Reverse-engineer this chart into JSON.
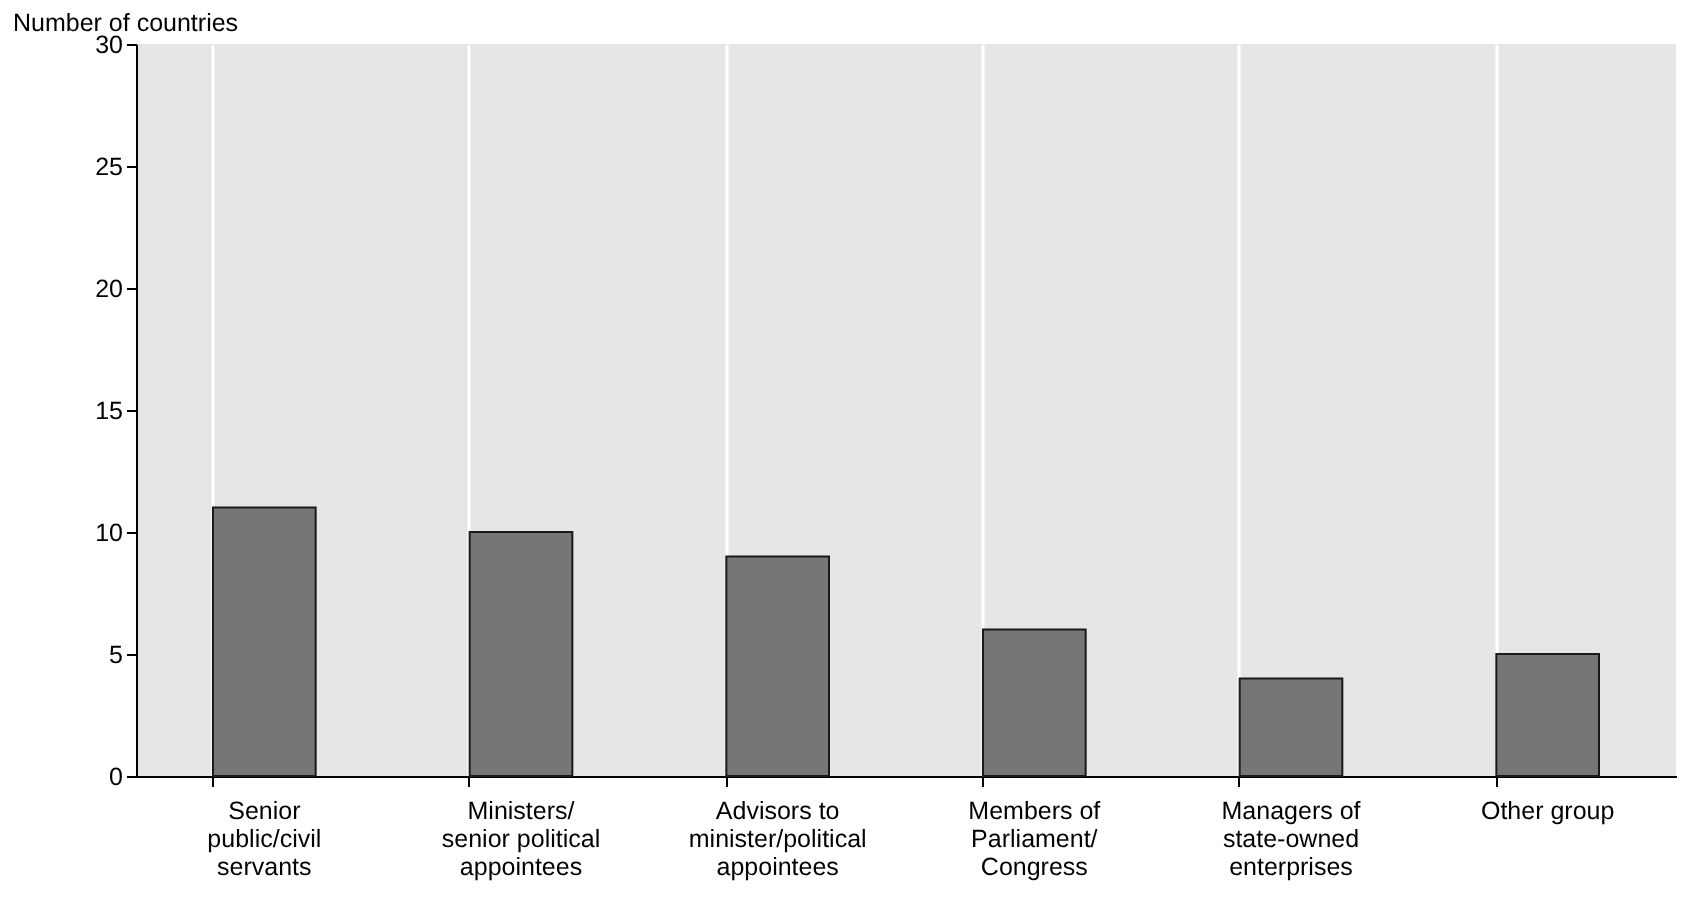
{
  "chart_data": {
    "type": "bar",
    "ylabel": "Number of countries",
    "categories": [
      "Senior public/civil servants",
      "Ministers/ senior political appointees",
      "Advisors to minister/political appointees",
      "Members of Parliament/ Congress",
      "Managers of state-owned enterprises",
      "Other group"
    ],
    "values": [
      11,
      10,
      9,
      6,
      4,
      5
    ],
    "color": "#767678",
    "ylim": [
      0,
      30
    ],
    "yticks": [
      0,
      5,
      10,
      15,
      20,
      25,
      30
    ],
    "grid": "x"
  }
}
